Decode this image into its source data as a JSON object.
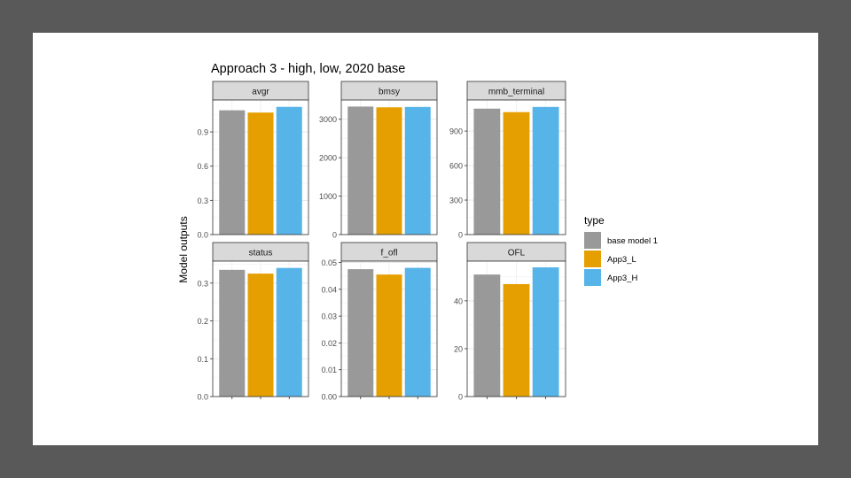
{
  "chart_data": {
    "type": "bar",
    "title": "Approach 3 - high, low, 2020 base",
    "ylabel": "Model outputs",
    "xlabel": "",
    "legend": {
      "title": "type",
      "placement": "right",
      "entries": [
        "base model 1",
        "App3_L",
        "App3_H"
      ]
    },
    "colors": {
      "base model 1": "#999999",
      "App3_L": "#E69F00",
      "App3_H": "#56B4E9"
    },
    "grid": true,
    "facets": [
      {
        "name": "avgr",
        "categories": [
          "base model 1",
          "App3_L",
          "App3_H"
        ],
        "values": [
          1.09,
          1.07,
          1.12
        ],
        "ylim": [
          0,
          1.18
        ],
        "yticks": [
          0.0,
          0.3,
          0.6,
          0.9
        ],
        "yticklabels": [
          "0.0",
          "0.3",
          "0.6",
          "0.9"
        ]
      },
      {
        "name": "bmsy",
        "categories": [
          "base model 1",
          "App3_L",
          "App3_H"
        ],
        "values": [
          3330,
          3310,
          3320
        ],
        "ylim": [
          0,
          3500
        ],
        "yticks": [
          0,
          1000,
          2000,
          3000
        ],
        "yticklabels": [
          "0",
          "1000",
          "2000",
          "3000"
        ]
      },
      {
        "name": "mmb_terminal",
        "categories": [
          "base model 1",
          "App3_L",
          "App3_H"
        ],
        "values": [
          1095,
          1065,
          1110
        ],
        "ylim": [
          0,
          1170
        ],
        "yticks": [
          0,
          300,
          600,
          900
        ],
        "yticklabels": [
          "0",
          "300",
          "600",
          "900"
        ]
      },
      {
        "name": "status",
        "categories": [
          "base model 1",
          "App3_L",
          "App3_H"
        ],
        "values": [
          0.335,
          0.325,
          0.34
        ],
        "ylim": [
          0,
          0.358
        ],
        "yticks": [
          0.0,
          0.1,
          0.2,
          0.3
        ],
        "yticklabels": [
          "0.0",
          "0.1",
          "0.2",
          "0.3"
        ]
      },
      {
        "name": "f_ofl",
        "categories": [
          "base model 1",
          "App3_L",
          "App3_H"
        ],
        "values": [
          0.0475,
          0.0455,
          0.048
        ],
        "ylim": [
          0,
          0.0505
        ],
        "yticks": [
          0.0,
          0.01,
          0.02,
          0.03,
          0.04,
          0.05
        ],
        "yticklabels": [
          "0.00",
          "0.01",
          "0.02",
          "0.03",
          "0.04",
          "0.05"
        ]
      },
      {
        "name": "OFL",
        "categories": [
          "base model 1",
          "App3_L",
          "App3_H"
        ],
        "values": [
          51,
          47,
          54
        ],
        "ylim": [
          0,
          56.6
        ],
        "yticks": [
          0,
          20,
          40
        ],
        "yticklabels": [
          "0",
          "20",
          "40"
        ]
      }
    ]
  }
}
